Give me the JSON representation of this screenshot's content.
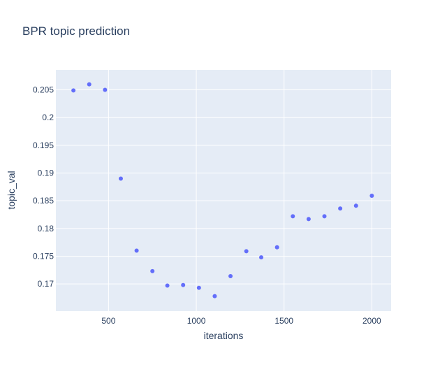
{
  "chart_data": {
    "type": "scatter",
    "title": "BPR topic prediction",
    "xlabel": "iterations",
    "ylabel": "topic_val",
    "xlim": [
      200,
      2110
    ],
    "ylim": [
      0.1651,
      0.2086
    ],
    "x_ticks": [
      500,
      1000,
      1500,
      2000
    ],
    "x_tick_labels": [
      "500",
      "1000",
      "1500",
      "2000"
    ],
    "y_ticks": [
      0.17,
      0.175,
      0.18,
      0.185,
      0.19,
      0.195,
      0.2,
      0.205
    ],
    "y_tick_labels": [
      "0.17",
      "0.175",
      "0.18",
      "0.185",
      "0.19",
      "0.195",
      "0.2",
      "0.205"
    ],
    "grid": true,
    "marker_color": "#636efa",
    "plot_bg": "#e5ecf6",
    "x": [
      300,
      390,
      480,
      570,
      660,
      750,
      835,
      925,
      1015,
      1105,
      1195,
      1285,
      1370,
      1460,
      1550,
      1640,
      1730,
      1820,
      1910,
      2000
    ],
    "y": [
      0.2049,
      0.206,
      0.205,
      0.189,
      0.176,
      0.1723,
      0.1697,
      0.1698,
      0.1693,
      0.1678,
      0.1714,
      0.1759,
      0.1748,
      0.1766,
      0.1822,
      0.1817,
      0.1822,
      0.1836,
      0.1841,
      0.1859
    ]
  }
}
